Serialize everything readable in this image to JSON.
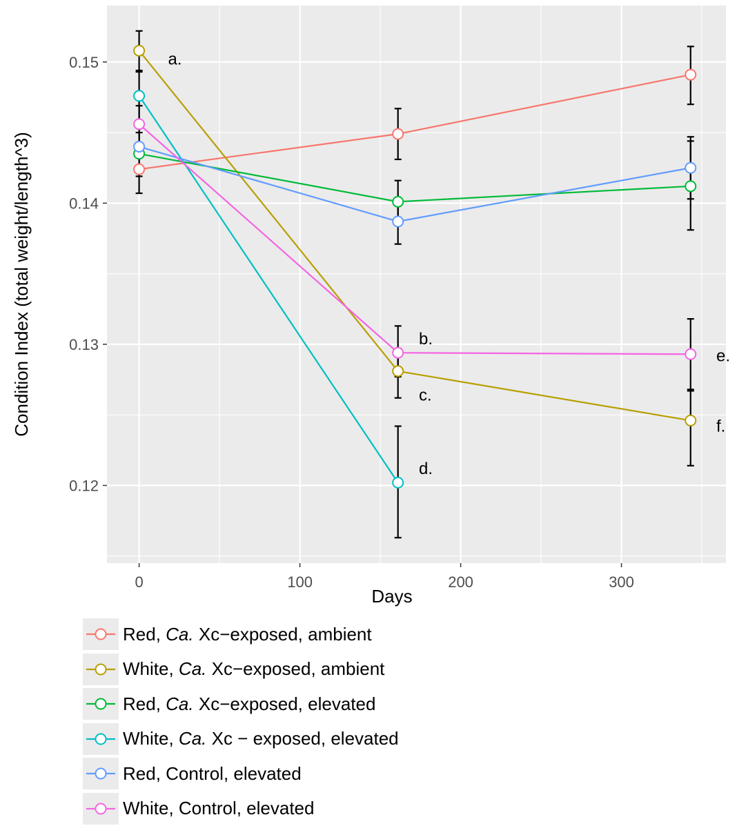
{
  "chart_data": {
    "type": "line",
    "xlabel": "Days",
    "ylabel": "Condition Index (total weight/length^3)",
    "xlim": [
      -20,
      365
    ],
    "ylim": [
      0.1145,
      0.154
    ],
    "x_ticks": [
      0,
      100,
      200,
      300
    ],
    "x_tick_labels": [
      "0",
      "100",
      "200",
      "300"
    ],
    "y_ticks": [
      0.12,
      0.13,
      0.14,
      0.15
    ],
    "y_tick_labels": [
      "0.12",
      "0.13",
      "0.14",
      "0.15"
    ],
    "grid": true,
    "legend_position": "bottom",
    "x": [
      0,
      161,
      343
    ],
    "series": [
      {
        "label_parts": [
          "Red, ",
          "Ca.",
          " Xc−exposed, ambient"
        ],
        "color": "#F8766D",
        "values": [
          0.1424,
          0.1449,
          0.1491
        ],
        "err_low": [
          0.1407,
          0.1431,
          0.147
        ],
        "err_high": [
          0.1439,
          0.1467,
          0.1511
        ]
      },
      {
        "label_parts": [
          "White, ",
          "Ca.",
          " Xc−exposed, ambient"
        ],
        "color": "#B79F00",
        "values": [
          0.1508,
          0.1281,
          0.1246
        ],
        "err_low": [
          0.1494,
          0.1262,
          0.1214
        ],
        "err_high": [
          0.1522,
          0.1297,
          0.1267
        ]
      },
      {
        "label_parts": [
          "Red, ",
          "Ca.",
          " Xc−exposed, elevated"
        ],
        "color": "#00BA38",
        "values": [
          0.1435,
          0.1401,
          0.1412
        ],
        "err_low": [
          0.1419,
          0.1387,
          0.1381
        ],
        "err_high": [
          0.145,
          0.1416,
          0.1444
        ]
      },
      {
        "label_parts": [
          "White, ",
          "Ca.",
          " Xc − exposed, elevated"
        ],
        "color": "#00BFC4",
        "values": [
          0.1476,
          0.1202,
          null
        ],
        "err_low": [
          0.1457,
          0.1163,
          null
        ],
        "err_high": [
          0.1493,
          0.1242,
          null
        ]
      },
      {
        "label_parts": [
          "Red, Control, elevated",
          "",
          ""
        ],
        "color": "#619CFF",
        "values": [
          0.144,
          0.1387,
          0.1425
        ],
        "err_low": [
          0.1425,
          0.1371,
          0.1403
        ],
        "err_high": [
          0.1456,
          0.1403,
          0.1447
        ]
      },
      {
        "label_parts": [
          "White, Control, elevated",
          "",
          ""
        ],
        "color": "#F564E3",
        "values": [
          0.1456,
          0.1294,
          0.1293
        ],
        "err_low": [
          0.1441,
          0.1277,
          0.1268
        ],
        "err_high": [
          0.1469,
          0.1313,
          0.1318
        ]
      }
    ],
    "annotations": [
      {
        "text": "a.",
        "x": 18,
        "y": 0.1502
      },
      {
        "text": "b.",
        "x": 174,
        "y": 0.1304
      },
      {
        "text": "c.",
        "x": 174,
        "y": 0.1264
      },
      {
        "text": "d.",
        "x": 174,
        "y": 0.1212
      },
      {
        "text": "e.",
        "x": 359,
        "y": 0.1292
      },
      {
        "text": "f.",
        "x": 359,
        "y": 0.1242
      }
    ]
  }
}
